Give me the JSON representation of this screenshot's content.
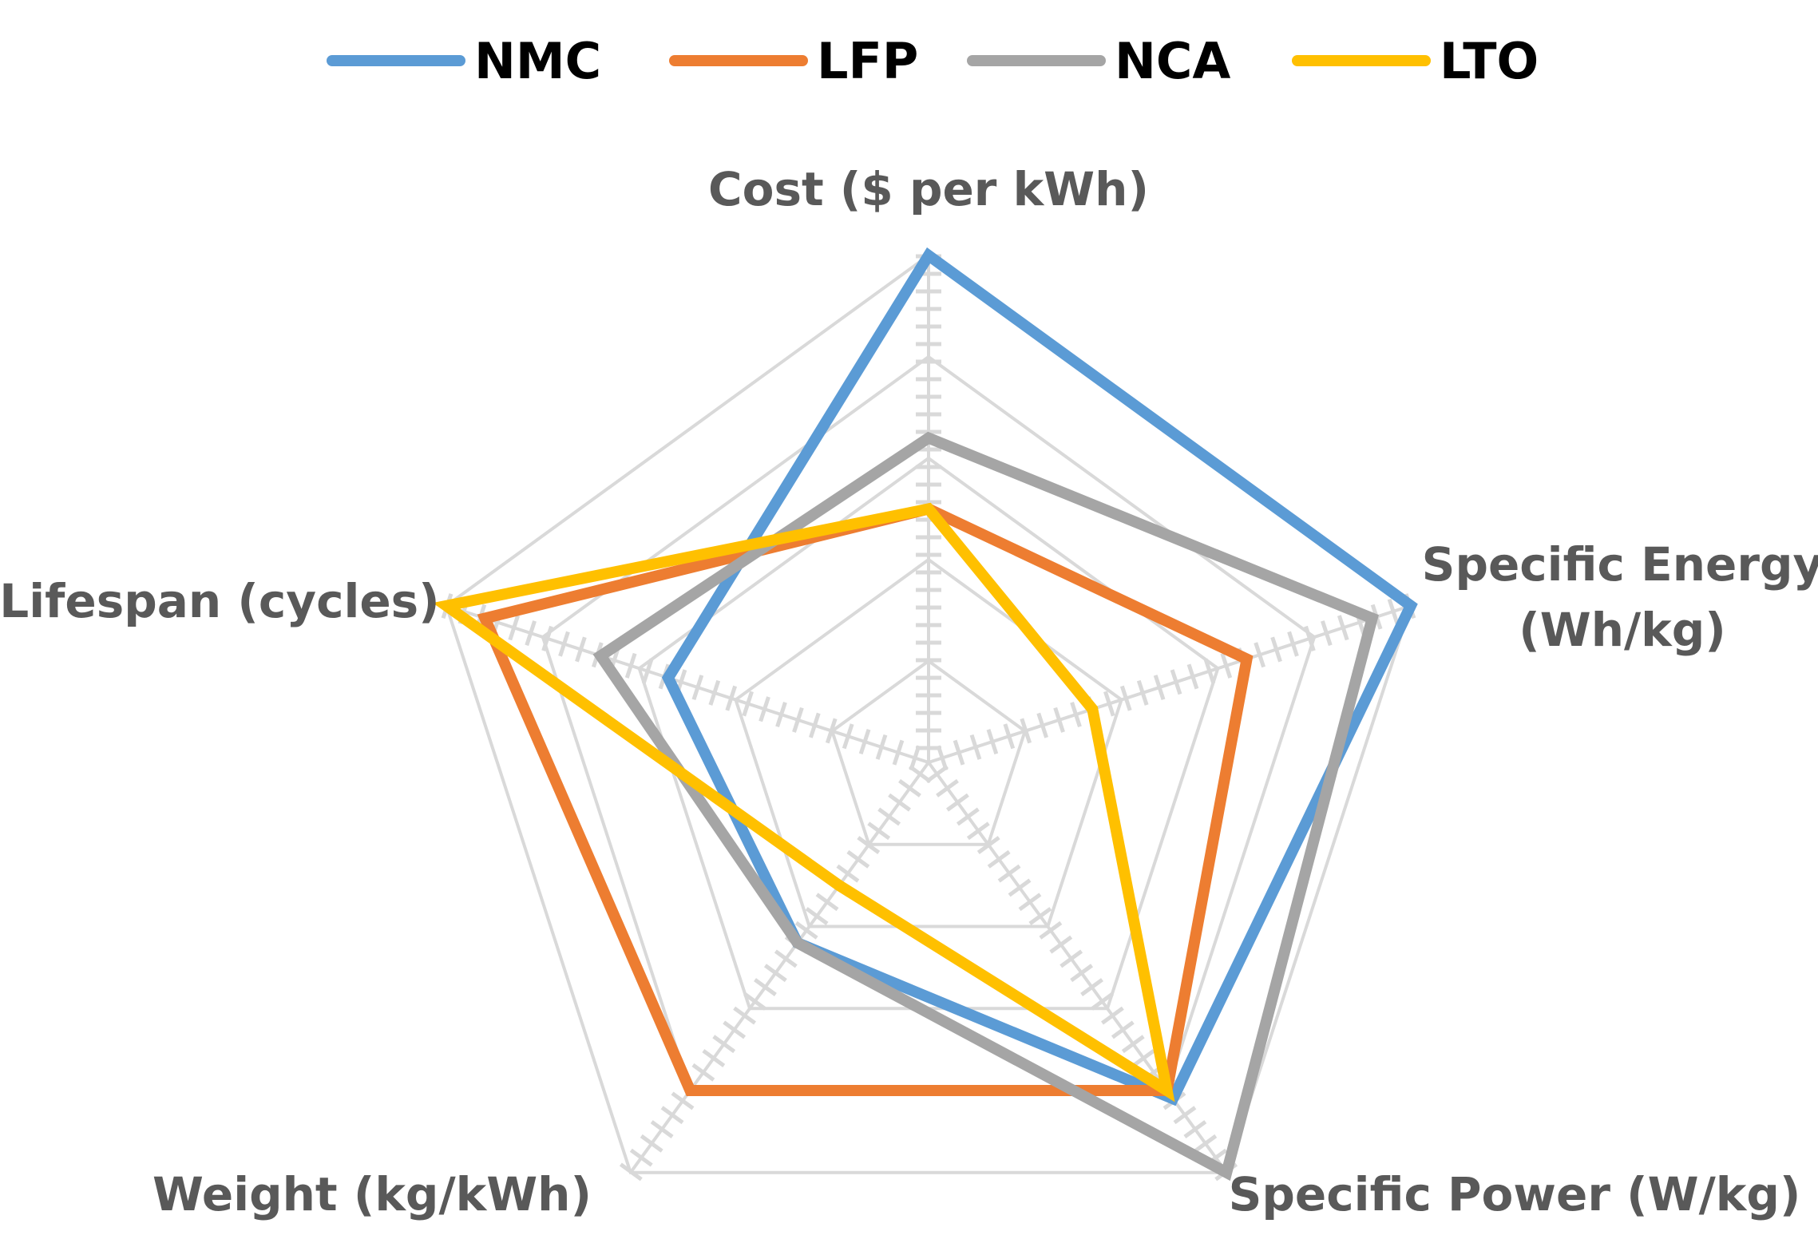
{
  "chart_data": {
    "type": "radar",
    "title": "",
    "axes": [
      "Cost ($ per kWh)",
      "Specific Energy (Wh/kg)",
      "Specific Power (W/kg)",
      "Weight (kg/kWh)",
      "Lifespan (cycles)"
    ],
    "axis_label_lines": [
      [
        "Cost ($ per kWh)"
      ],
      [
        "Specific Energy",
        "(Wh/kg)"
      ],
      [
        "Specific Power (W/kg)"
      ],
      [
        "Weight (kg/kWh)"
      ],
      [
        "Lifespan (cycles)"
      ]
    ],
    "range": [
      0,
      5
    ],
    "grid_levels": 5,
    "legend_position": "top",
    "series": [
      {
        "name": "NMC",
        "color": "#5b9bd5",
        "values": [
          5.0,
          5.0,
          4.1,
          2.2,
          2.7
        ]
      },
      {
        "name": "LFP",
        "color": "#ed7d31",
        "values": [
          2.5,
          3.3,
          4.0,
          4.0,
          4.6
        ]
      },
      {
        "name": "NCA",
        "color": "#a5a5a5",
        "values": [
          3.2,
          4.6,
          5.0,
          2.2,
          3.4
        ]
      },
      {
        "name": "LTO",
        "color": "#ffc000",
        "values": [
          2.5,
          1.7,
          4.0,
          1.5,
          5.0
        ]
      }
    ]
  }
}
